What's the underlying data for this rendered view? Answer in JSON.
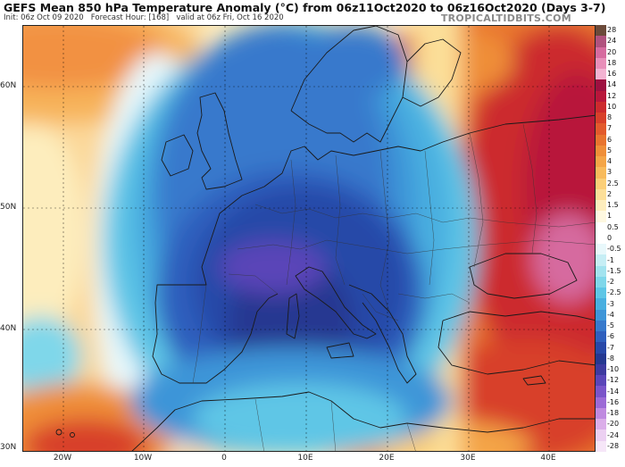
{
  "header": {
    "title": "GEFS Mean 850 hPa Temperature Anomaly (°C) from 06z11Oct2020 to 06z16Oct2020 (Days 3-7)",
    "init": "Init: 06z Oct 09 2020",
    "forecast_hour": "Forecast Hour: [168]",
    "valid": "valid at 06z Fri, Oct 16 2020",
    "brand": "TROPICALTIDBITS.COM"
  },
  "axes": {
    "lat_labels": [
      "60N",
      "50N",
      "40N",
      "30N"
    ],
    "lon_labels": [
      "20W",
      "10W",
      "0",
      "10E",
      "20E",
      "30E",
      "40E"
    ]
  },
  "colorbar": {
    "labels": [
      "28",
      "24",
      "20",
      "18",
      "16",
      "14",
      "12",
      "10",
      "8",
      "7",
      "6",
      "5",
      "4",
      "3",
      "2.5",
      "2",
      "1.5",
      "1",
      "0.5",
      "0",
      "-0.5",
      "-1",
      "-1.5",
      "-2",
      "-2.5",
      "-3",
      "-4",
      "-5",
      "-6",
      "-7",
      "-8",
      "-10",
      "-12",
      "-14",
      "-16",
      "-18",
      "-20",
      "-24",
      "-28"
    ],
    "colors": [
      "#6b4a3a",
      "#b0527e",
      "#d66b9f",
      "#e88fb9",
      "#f3b3d2",
      "#9e1040",
      "#b8163b",
      "#cc2a2e",
      "#d8402a",
      "#e25a2c",
      "#e8742f",
      "#ef8e38",
      "#f4a547",
      "#f8bb5c",
      "#fbcf78",
      "#fcdf99",
      "#fdedbd",
      "#fef8e0",
      "#ffffff",
      "#ffffff",
      "#e8f8fb",
      "#c6eef5",
      "#a2e3ef",
      "#7fd7ea",
      "#5ec6e6",
      "#49afe0",
      "#3e95d8",
      "#3779cc",
      "#2f5fbd",
      "#2848a8",
      "#253891",
      "#3d3aa0",
      "#5a45b8",
      "#7a54c9",
      "#9c6ad6",
      "#bf8ae0",
      "#dbaee9",
      "#ecd0f2",
      "#f6e6f8"
    ]
  },
  "map": {
    "regions": [
      "Atlantic Ocean",
      "British Isles",
      "Iberian Peninsula",
      "Western Europe",
      "Central Europe",
      "Scandinavia",
      "Italy",
      "Balkans",
      "Eastern Europe",
      "Turkey",
      "North Africa",
      "Mediterranean Sea",
      "Black Sea"
    ],
    "anomaly_summary": "Cold anomaly over western and central Europe and the Mediterranean; warm anomaly over eastern Europe, Black Sea region, Turkey; warm patches over north Atlantic and Canary/Morocco region."
  }
}
